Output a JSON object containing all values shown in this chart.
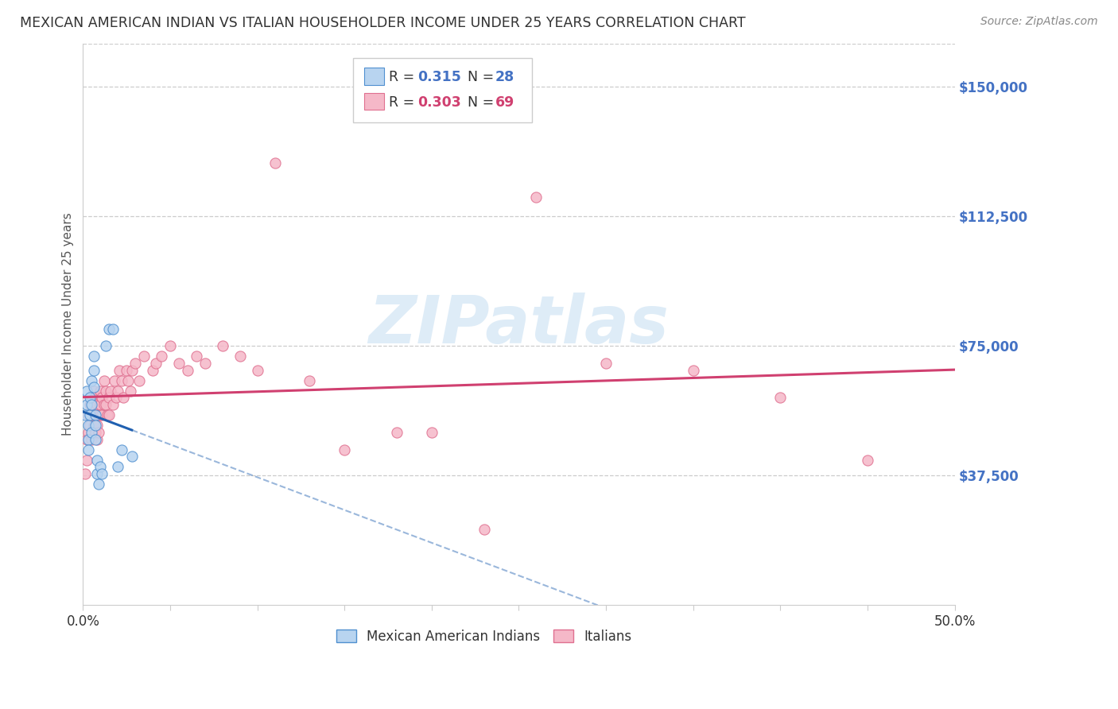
{
  "title": "MEXICAN AMERICAN INDIAN VS ITALIAN HOUSEHOLDER INCOME UNDER 25 YEARS CORRELATION CHART",
  "source": "Source: ZipAtlas.com",
  "ylabel": "Householder Income Under 25 years",
  "xlim": [
    0.0,
    0.5
  ],
  "ylim": [
    0,
    162500
  ],
  "xtick_values": [
    0.0,
    0.05,
    0.1,
    0.15,
    0.2,
    0.25,
    0.3,
    0.35,
    0.4,
    0.45,
    0.5
  ],
  "ytick_values": [
    37500,
    75000,
    112500,
    150000
  ],
  "ytick_labels": [
    "$37,500",
    "$75,000",
    "$112,500",
    "$150,000"
  ],
  "blue_R": 0.315,
  "blue_N": 28,
  "pink_R": 0.303,
  "pink_N": 69,
  "blue_scatter_color": "#b8d4f0",
  "blue_scatter_edge": "#5090d0",
  "blue_line_color": "#2060b0",
  "pink_scatter_color": "#f5b8c8",
  "pink_scatter_edge": "#e07090",
  "pink_line_color": "#d04070",
  "watermark_color": "#d0e4f4",
  "background_color": "#ffffff",
  "grid_color": "#cccccc",
  "blue_x": [
    0.001,
    0.002,
    0.002,
    0.003,
    0.003,
    0.003,
    0.004,
    0.004,
    0.005,
    0.005,
    0.005,
    0.006,
    0.006,
    0.006,
    0.007,
    0.007,
    0.007,
    0.008,
    0.008,
    0.009,
    0.01,
    0.011,
    0.013,
    0.015,
    0.017,
    0.02,
    0.022,
    0.028
  ],
  "blue_y": [
    55000,
    58000,
    62000,
    52000,
    48000,
    45000,
    60000,
    55000,
    50000,
    65000,
    58000,
    68000,
    72000,
    63000,
    55000,
    52000,
    48000,
    42000,
    38000,
    35000,
    40000,
    38000,
    75000,
    80000,
    80000,
    40000,
    45000,
    43000
  ],
  "pink_x": [
    0.001,
    0.002,
    0.002,
    0.003,
    0.003,
    0.004,
    0.004,
    0.005,
    0.005,
    0.005,
    0.006,
    0.006,
    0.006,
    0.007,
    0.007,
    0.008,
    0.008,
    0.008,
    0.009,
    0.009,
    0.01,
    0.01,
    0.01,
    0.011,
    0.011,
    0.012,
    0.012,
    0.013,
    0.013,
    0.014,
    0.015,
    0.015,
    0.016,
    0.017,
    0.018,
    0.019,
    0.02,
    0.021,
    0.022,
    0.023,
    0.025,
    0.026,
    0.027,
    0.028,
    0.03,
    0.032,
    0.035,
    0.04,
    0.042,
    0.045,
    0.05,
    0.055,
    0.06,
    0.065,
    0.07,
    0.08,
    0.09,
    0.1,
    0.11,
    0.13,
    0.15,
    0.18,
    0.2,
    0.23,
    0.26,
    0.3,
    0.35,
    0.4,
    0.45
  ],
  "pink_y": [
    38000,
    48000,
    42000,
    55000,
    50000,
    58000,
    52000,
    60000,
    55000,
    48000,
    62000,
    58000,
    52000,
    55000,
    50000,
    58000,
    52000,
    48000,
    55000,
    50000,
    62000,
    58000,
    55000,
    60000,
    55000,
    65000,
    58000,
    62000,
    58000,
    55000,
    60000,
    55000,
    62000,
    58000,
    65000,
    60000,
    62000,
    68000,
    65000,
    60000,
    68000,
    65000,
    62000,
    68000,
    70000,
    65000,
    72000,
    68000,
    70000,
    72000,
    75000,
    70000,
    68000,
    72000,
    70000,
    75000,
    72000,
    68000,
    128000,
    65000,
    45000,
    50000,
    50000,
    22000,
    118000,
    70000,
    68000,
    60000,
    42000
  ]
}
